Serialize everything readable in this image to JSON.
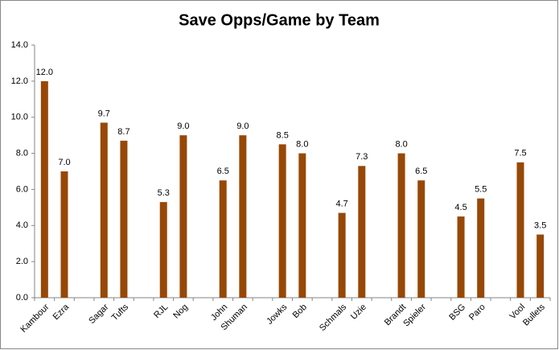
{
  "chart_data": {
    "type": "bar",
    "title": "Save Opps/Game by Team",
    "categories": [
      "Kambour",
      "Ezra",
      null,
      "Sagar",
      "Tufts",
      null,
      "RJL",
      "Nog",
      null,
      "John",
      "Shuman",
      null,
      "Jowks",
      "Bob",
      null,
      "Schmals",
      "Uzie",
      null,
      "Brandt",
      "Spieler",
      null,
      "BSG",
      "Paro",
      null,
      "Vool",
      "Bullets"
    ],
    "values": [
      12.0,
      7.0,
      null,
      9.7,
      8.7,
      null,
      5.3,
      9.0,
      null,
      6.5,
      9.0,
      null,
      8.5,
      8.0,
      null,
      4.7,
      7.3,
      null,
      8.0,
      6.5,
      null,
      4.5,
      5.5,
      null,
      7.5,
      3.5
    ],
    "value_labels": [
      "12.0",
      "7.0",
      null,
      "9.7",
      "8.7",
      null,
      "5.3",
      "9.0",
      null,
      "6.5",
      "9.0",
      null,
      "8.5",
      "8.0",
      null,
      "4.7",
      "7.3",
      null,
      "8.0",
      "6.5",
      null,
      "4.5",
      "5.5",
      null,
      "7.5",
      "3.5"
    ],
    "color": "#974806",
    "ylim": [
      0,
      14
    ],
    "yticks": [
      {
        "value": 0,
        "label": "0.0"
      },
      {
        "value": 2,
        "label": "2.0"
      },
      {
        "value": 4,
        "label": "4.0"
      },
      {
        "value": 6,
        "label": "6.0"
      },
      {
        "value": 8,
        "label": "8.0"
      },
      {
        "value": 10,
        "label": "10.0"
      },
      {
        "value": 12,
        "label": "12.0"
      },
      {
        "value": 14,
        "label": "14.0"
      }
    ],
    "grid": false
  }
}
